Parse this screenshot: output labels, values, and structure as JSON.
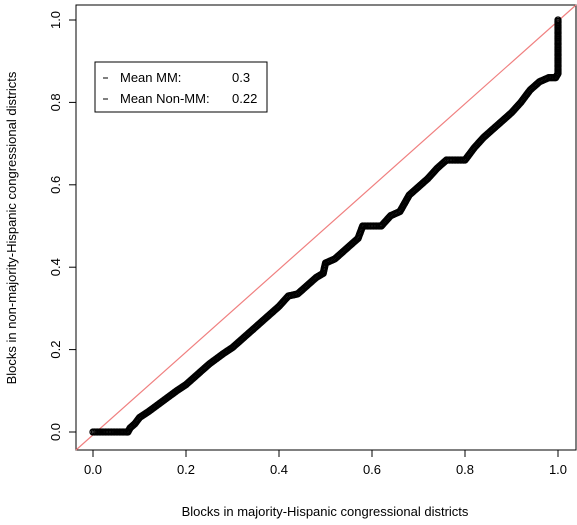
{
  "chart_data": {
    "type": "scatter",
    "xlabel": "Blocks in majority-Hispanic congressional districts",
    "ylabel": "Blocks in non-majority-Hispanic congressional districts",
    "xlim": [
      0,
      1
    ],
    "ylim": [
      0,
      1
    ],
    "xticks": [
      "0.0",
      "0.2",
      "0.4",
      "0.6",
      "0.8",
      "1.0"
    ],
    "yticks": [
      "0.0",
      "0.2",
      "0.4",
      "0.6",
      "0.8",
      "1.0"
    ],
    "grid": false,
    "legend": {
      "placement": "top-left",
      "entries": [
        {
          "label": "Mean MM:",
          "value": "0.3"
        },
        {
          "label": "Mean Non-MM:",
          "value": "0.22"
        }
      ]
    },
    "reference_line": {
      "from": [
        0,
        0
      ],
      "to": [
        1,
        1
      ],
      "color": "#f08080"
    },
    "series": [
      {
        "marker_color": "#000000",
        "points": [
          [
            0.0,
            0.0
          ],
          [
            0.02,
            0.0
          ],
          [
            0.04,
            0.0
          ],
          [
            0.06,
            0.0
          ],
          [
            0.075,
            0.0
          ],
          [
            0.08,
            0.01
          ],
          [
            0.09,
            0.02
          ],
          [
            0.1,
            0.035
          ],
          [
            0.12,
            0.05
          ],
          [
            0.15,
            0.075
          ],
          [
            0.18,
            0.1
          ],
          [
            0.2,
            0.115
          ],
          [
            0.22,
            0.135
          ],
          [
            0.25,
            0.165
          ],
          [
            0.28,
            0.19
          ],
          [
            0.3,
            0.205
          ],
          [
            0.33,
            0.235
          ],
          [
            0.36,
            0.265
          ],
          [
            0.38,
            0.285
          ],
          [
            0.4,
            0.305
          ],
          [
            0.42,
            0.33
          ],
          [
            0.44,
            0.335
          ],
          [
            0.46,
            0.355
          ],
          [
            0.48,
            0.375
          ],
          [
            0.495,
            0.385
          ],
          [
            0.5,
            0.41
          ],
          [
            0.52,
            0.42
          ],
          [
            0.55,
            0.45
          ],
          [
            0.57,
            0.47
          ],
          [
            0.58,
            0.5
          ],
          [
            0.62,
            0.5
          ],
          [
            0.64,
            0.525
          ],
          [
            0.66,
            0.535
          ],
          [
            0.67,
            0.555
          ],
          [
            0.68,
            0.575
          ],
          [
            0.7,
            0.595
          ],
          [
            0.72,
            0.615
          ],
          [
            0.74,
            0.64
          ],
          [
            0.76,
            0.66
          ],
          [
            0.8,
            0.66
          ],
          [
            0.82,
            0.69
          ],
          [
            0.84,
            0.715
          ],
          [
            0.86,
            0.735
          ],
          [
            0.88,
            0.755
          ],
          [
            0.9,
            0.775
          ],
          [
            0.92,
            0.8
          ],
          [
            0.94,
            0.83
          ],
          [
            0.96,
            0.85
          ],
          [
            0.98,
            0.86
          ],
          [
            0.995,
            0.86
          ],
          [
            1.0,
            0.87
          ],
          [
            1.0,
            0.89
          ],
          [
            1.0,
            0.91
          ],
          [
            1.0,
            0.93
          ],
          [
            1.0,
            0.95
          ],
          [
            1.0,
            0.97
          ],
          [
            1.0,
            0.99
          ],
          [
            1.0,
            1.0
          ]
        ]
      }
    ]
  }
}
